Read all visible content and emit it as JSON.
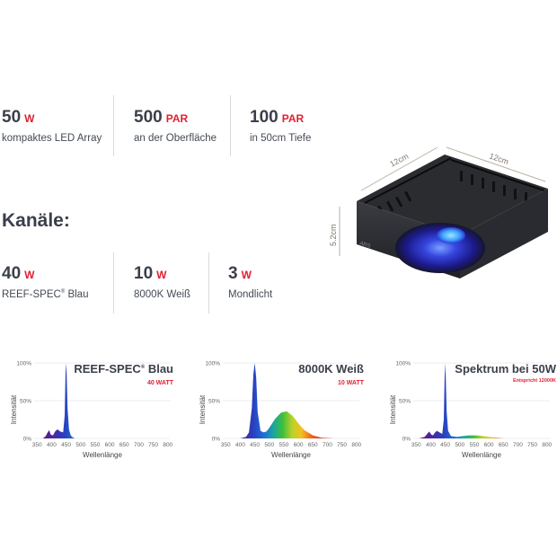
{
  "top_stats": [
    {
      "value": "50",
      "unit": "W",
      "label": "kompaktes LED Array"
    },
    {
      "value": "500",
      "unit": "PAR",
      "label": "an der Oberfläche"
    },
    {
      "value": "100",
      "unit": "PAR",
      "label": "in 50cm Tiefe"
    }
  ],
  "channels_title": "Kanäle:",
  "channels": [
    {
      "value": "40",
      "unit": "W",
      "label_main": "REEF-SPEC",
      "label_tail": " Blau"
    },
    {
      "value": "10",
      "unit": "W",
      "label_main": "8000K Weiß",
      "label_tail": ""
    },
    {
      "value": "3",
      "unit": "W",
      "label_main": "Mondlicht",
      "label_tail": ""
    }
  ],
  "reg_mark": "®",
  "product": {
    "dim_width": "12cm",
    "dim_depth": "12cm",
    "dim_height": "5.2cm",
    "logo": "ARS"
  },
  "colors": {
    "accent": "#e02031",
    "text": "#3b3f4a",
    "separator": "#d8dadf"
  },
  "chart_data": [
    {
      "type": "area",
      "title_main": "REEF-SPEC",
      "title_tail": " Blau",
      "subtitle": "40 WATT",
      "xlabel": "Wellenlänge",
      "ylabel": "Intensität",
      "xlim": [
        340,
        810
      ],
      "ylim": [
        0,
        100
      ],
      "xticks": [
        "350",
        "400",
        "450",
        "500",
        "550",
        "600",
        "650",
        "700",
        "750",
        "800"
      ],
      "yticks": [
        "0%",
        "50%",
        "100%"
      ],
      "x": [
        350,
        370,
        380,
        385,
        392,
        397,
        405,
        412,
        420,
        430,
        440,
        445,
        448,
        450,
        452,
        455,
        460,
        465,
        470,
        480,
        500
      ],
      "y": [
        0,
        0,
        3,
        7,
        11,
        5,
        4,
        9,
        12,
        9,
        8,
        30,
        85,
        100,
        85,
        40,
        12,
        5,
        2,
        0,
        0
      ]
    },
    {
      "type": "area",
      "title_main": "8000K Weiß",
      "title_tail": "",
      "subtitle": "10 WATT",
      "xlabel": "Wellenlänge",
      "ylabel": "Intensität",
      "xlim": [
        340,
        810
      ],
      "ylim": [
        0,
        100
      ],
      "xticks": [
        "350",
        "400",
        "450",
        "500",
        "550",
        "600",
        "650",
        "700",
        "750",
        "800"
      ],
      "yticks": [
        "0%",
        "50%",
        "100%"
      ],
      "x": [
        400,
        420,
        430,
        440,
        445,
        450,
        455,
        460,
        470,
        480,
        490,
        500,
        520,
        540,
        560,
        580,
        600,
        620,
        650,
        680,
        720
      ],
      "y": [
        0,
        2,
        8,
        40,
        85,
        100,
        80,
        35,
        10,
        8,
        9,
        14,
        26,
        34,
        36,
        30,
        20,
        11,
        4,
        1,
        0
      ]
    },
    {
      "type": "area",
      "title_main": "Spektrum bei 50W",
      "title_tail": "",
      "subtitle": "Entspricht 12000K",
      "xlabel": "Wellenlänge",
      "ylabel": "Intensität",
      "xlim": [
        340,
        810
      ],
      "ylim": [
        0,
        100
      ],
      "xticks": [
        "350",
        "400",
        "450",
        "500",
        "550",
        "600",
        "650",
        "700",
        "750",
        "800"
      ],
      "yticks": [
        "0%",
        "50%",
        "100%"
      ],
      "x": [
        360,
        380,
        388,
        395,
        402,
        408,
        415,
        422,
        430,
        440,
        445,
        448,
        450,
        452,
        455,
        460,
        470,
        490,
        530,
        560,
        600,
        650
      ],
      "y": [
        0,
        2,
        6,
        9,
        5,
        4,
        8,
        10,
        8,
        6,
        25,
        80,
        100,
        80,
        35,
        10,
        3,
        2,
        4,
        4,
        2,
        0
      ]
    }
  ]
}
